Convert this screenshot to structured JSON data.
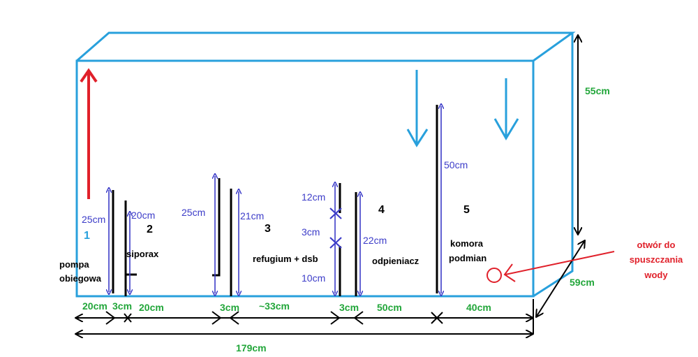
{
  "colors": {
    "tank_outline": "#28a0dc",
    "dimension": "#22a63a",
    "inner_measure": "#3c3cc8",
    "wall": "#000000",
    "return_flow": "#e0202a",
    "drain_label": "#e0202a"
  },
  "dimensions": {
    "height": "55cm",
    "depth": "59cm",
    "total_length": "179cm",
    "bottom_segments": [
      "20cm",
      "3cm",
      "20cm",
      "3cm",
      "~33cm",
      "3cm",
      "50cm",
      "40cm"
    ]
  },
  "inner_measures": {
    "wall1": "25cm",
    "wall2": "20cm",
    "wall3": "25cm",
    "wall4": "21cm",
    "wall5_top": "12cm",
    "wall5_gap": "3cm",
    "wall5_bottom": "10cm",
    "wall6": "22cm",
    "wall7": "50cm"
  },
  "chambers": {
    "c1_number": "1",
    "c1_label_line1": "pompa",
    "c1_label_line2": "obiegowa",
    "c2_number": "2",
    "c2_label": "siporax",
    "c3_number": "3",
    "c3_label": "refugium + dsb",
    "c4_number": "4",
    "c4_label": "odpieniacz",
    "c5_number": "5",
    "c5_label_line1": "komora",
    "c5_label_line2": "podmian"
  },
  "drain": {
    "line1": "otwór do",
    "line2": "spuszczania",
    "line3": "wody"
  }
}
